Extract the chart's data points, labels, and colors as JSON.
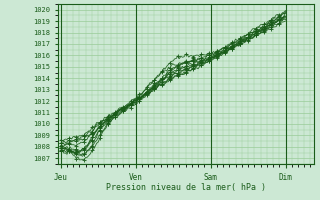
{
  "xlabel": "Pression niveau de la mer( hPa )",
  "ylim": [
    1006.5,
    1020.5
  ],
  "yticks": [
    1007,
    1008,
    1009,
    1010,
    1011,
    1012,
    1013,
    1014,
    1015,
    1016,
    1017,
    1018,
    1019,
    1020
  ],
  "xtick_labels": [
    "Jeu",
    "Ven",
    "Sam",
    "Dim"
  ],
  "xtick_positions": [
    0,
    48,
    96,
    144
  ],
  "xlim": [
    -2,
    162
  ],
  "background_color": "#cce8d4",
  "grid_color": "#99cc99",
  "line_color": "#1a5c1a",
  "n_points": 145
}
